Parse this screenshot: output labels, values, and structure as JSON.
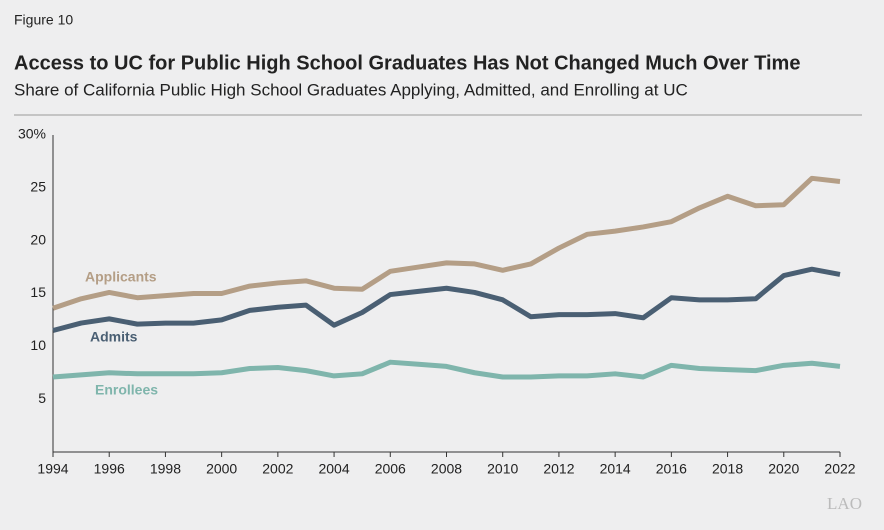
{
  "figure_label": "Figure 10",
  "logo": "LAO",
  "chart_data": {
    "type": "line",
    "title": "Access to UC for Public High School Graduates Has Not Changed Much Over Time",
    "subtitle": "Share of California Public High School Graduates Applying, Admitted, and Enrolling at UC",
    "x": [
      1994,
      1995,
      1996,
      1997,
      1998,
      1999,
      2000,
      2001,
      2002,
      2003,
      2004,
      2005,
      2006,
      2007,
      2008,
      2009,
      2010,
      2011,
      2012,
      2013,
      2014,
      2015,
      2016,
      2017,
      2018,
      2019,
      2020,
      2021,
      2022
    ],
    "series": [
      {
        "name": "Applicants",
        "color": "#b49e86",
        "values": [
          13.6,
          14.5,
          15.1,
          14.6,
          14.8,
          15.0,
          15.0,
          15.7,
          16.0,
          16.2,
          15.5,
          15.4,
          17.1,
          17.5,
          17.9,
          17.8,
          17.2,
          17.8,
          19.3,
          20.6,
          20.9,
          21.3,
          21.8,
          23.1,
          24.2,
          23.3,
          23.4,
          25.9,
          25.6
        ]
      },
      {
        "name": "Admits",
        "color": "#4a5f73",
        "values": [
          11.5,
          12.2,
          12.6,
          12.1,
          12.2,
          12.2,
          12.5,
          13.4,
          13.7,
          13.9,
          12.0,
          13.2,
          14.9,
          15.2,
          15.5,
          15.1,
          14.4,
          12.8,
          13.0,
          13.0,
          13.1,
          12.7,
          14.6,
          14.4,
          14.4,
          14.5,
          16.7,
          17.3,
          16.8
        ]
      },
      {
        "name": "Enrollees",
        "color": "#7fb5ac",
        "values": [
          7.1,
          7.3,
          7.5,
          7.4,
          7.4,
          7.4,
          7.5,
          7.9,
          8.0,
          7.7,
          7.2,
          7.4,
          8.5,
          8.3,
          8.1,
          7.5,
          7.1,
          7.1,
          7.2,
          7.2,
          7.4,
          7.1,
          8.2,
          7.9,
          7.8,
          7.7,
          8.2,
          8.4,
          8.1
        ]
      }
    ],
    "xlim": [
      1994,
      2022
    ],
    "xticks": [
      1994,
      1996,
      1998,
      2000,
      2002,
      2004,
      2006,
      2008,
      2010,
      2012,
      2014,
      2016,
      2018,
      2020,
      2022
    ],
    "ylim": [
      0,
      30
    ],
    "yticks": [
      5,
      10,
      15,
      20,
      25,
      {
        "value": 30,
        "label": "30%"
      }
    ],
    "grid": false
  }
}
